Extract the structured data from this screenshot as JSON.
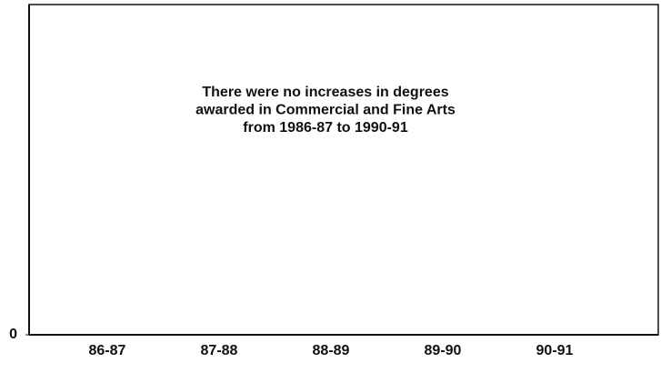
{
  "chart_data": {
    "type": "bar",
    "annotation": [
      "There were no increases in degrees",
      "awarded in Commercial and Fine Arts",
      "from 1986-87 to 1990-91"
    ],
    "categories": [
      "86-87",
      "87-88",
      "88-89",
      "89-90",
      "90-91"
    ],
    "yticks": [
      0
    ]
  }
}
